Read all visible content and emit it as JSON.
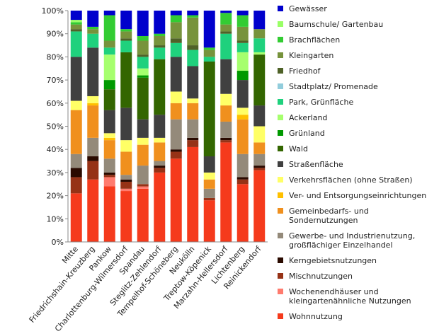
{
  "chart_data": {
    "type": "stacked_bar_100",
    "categories": [
      "Mitte",
      "Friedrichshain-Kreuzberg",
      "Pankow",
      "Charlottenburg-Wilmersdorf",
      "Spandau",
      "Steglitz-Zehlendorf",
      "Tempelhof-Schöneberg",
      "Neukölln",
      "Treptow-Köpenick",
      "Marzahn-Hellersdorf",
      "Lichtenberg",
      "Reinickendorf"
    ],
    "ylim": [
      0,
      100
    ],
    "yticks": [
      {
        "value": 0,
        "label": "0%"
      },
      {
        "value": 10,
        "label": "10%"
      },
      {
        "value": 20,
        "label": "20%"
      },
      {
        "value": 30,
        "label": "30%"
      },
      {
        "value": 40,
        "label": "40%"
      },
      {
        "value": 50,
        "label": "50%"
      },
      {
        "value": 60,
        "label": "60%"
      },
      {
        "value": 70,
        "label": "70%"
      },
      {
        "value": 80,
        "label": "80%"
      },
      {
        "value": 90,
        "label": "90%"
      },
      {
        "value": 100,
        "label": "100%"
      }
    ],
    "legend": "right",
    "series": [
      {
        "name": "Gewässer",
        "color": "#0000cc",
        "values": [
          4,
          7,
          2,
          8,
          11,
          10,
          2,
          2,
          16,
          1,
          2,
          8
        ]
      },
      {
        "name": "Baumschule/ Gartenbau",
        "color": "#99ff66",
        "values": [
          1,
          0,
          0,
          0,
          0,
          0,
          0,
          0,
          0,
          0,
          0,
          0
        ]
      },
      {
        "name": "Brachflächen",
        "color": "#33cc33",
        "values": [
          1,
          1,
          11,
          1,
          2,
          1,
          3,
          1,
          1,
          5,
          5,
          0
        ]
      },
      {
        "name": "Kleingarten",
        "color": "#77933c",
        "values": [
          2,
          2,
          3,
          3,
          6,
          4,
          7,
          12,
          3,
          3,
          6,
          4
        ]
      },
      {
        "name": "Friedhof",
        "color": "#4f6228",
        "values": [
          1,
          0,
          0,
          1,
          1,
          1,
          2,
          2,
          0,
          1,
          1,
          0
        ]
      },
      {
        "name": "Stadtplatz/ Promenade",
        "color": "#92cddc",
        "values": [
          0,
          0,
          0,
          0,
          0,
          0,
          0,
          0,
          0,
          0,
          0,
          0
        ]
      },
      {
        "name": "Park, Grünfläche",
        "color": "#1fd17d",
        "values": [
          11,
          6,
          3,
          5,
          5,
          5,
          6,
          7,
          2,
          11,
          4,
          6
        ]
      },
      {
        "name": "Ackerland",
        "color": "#a6ff6e",
        "values": [
          0,
          0,
          11,
          0,
          3,
          0,
          0,
          0,
          0,
          0,
          8,
          1
        ]
      },
      {
        "name": "Grünland",
        "color": "#009900",
        "values": [
          0,
          0,
          4,
          0,
          1,
          0,
          0,
          0,
          0,
          0,
          4,
          0
        ]
      },
      {
        "name": "Wald",
        "color": "#336600",
        "values": [
          0,
          0,
          9,
          24,
          18,
          24,
          0,
          0,
          41,
          0,
          0,
          22
        ]
      },
      {
        "name": "Straßenfläche",
        "color": "#404040",
        "values": [
          19,
          21,
          10,
          14,
          8,
          10,
          15,
          14,
          7,
          15,
          12,
          9
        ]
      },
      {
        "name": "Verkehrsflächen (ohne Straßen)",
        "color": "#ffff66",
        "values": [
          4,
          3,
          2,
          5,
          3,
          2,
          5,
          2,
          3,
          5,
          3,
          7
        ]
      },
      {
        "name": "Ver- und Entsorgungseinrichtungen",
        "color": "#ffc000",
        "values": [
          0,
          1,
          1,
          0,
          0,
          0,
          0,
          0,
          0,
          0,
          2,
          0
        ]
      },
      {
        "name": "Gemeinbedarfs- und Sondernutzungen",
        "color": "#f0901e",
        "values": [
          19,
          14,
          8,
          10,
          9,
          8,
          7,
          7,
          4,
          7,
          15,
          5
        ]
      },
      {
        "name": "Gewerbe- und Industrienutzung, großflächiger Einzelhandel",
        "color": "#948a7a",
        "values": [
          6,
          8,
          6,
          2,
          8,
          2,
          13,
          8,
          4,
          7,
          10,
          5
        ]
      },
      {
        "name": "Kerngebietsnutzungen",
        "color": "#2a0a00",
        "values": [
          4,
          2,
          1,
          1,
          0,
          1,
          1,
          1,
          0,
          1,
          1,
          1
        ]
      },
      {
        "name": "Mischnutzungen",
        "color": "#963216",
        "values": [
          7,
          8,
          1,
          3,
          1,
          2,
          3,
          3,
          1,
          1,
          2,
          1
        ]
      },
      {
        "name": "Wochenendhäuser und kleingartenähnliche Nutzungen",
        "color": "#ff7b6e",
        "values": [
          0,
          0,
          4,
          1,
          1,
          0,
          0,
          0,
          0,
          0,
          0,
          0
        ]
      },
      {
        "name": "Wohnnutzung",
        "color": "#f53a1c",
        "values": [
          21,
          27,
          24,
          22,
          23,
          30,
          36,
          41,
          18,
          43,
          25,
          31
        ]
      }
    ]
  }
}
